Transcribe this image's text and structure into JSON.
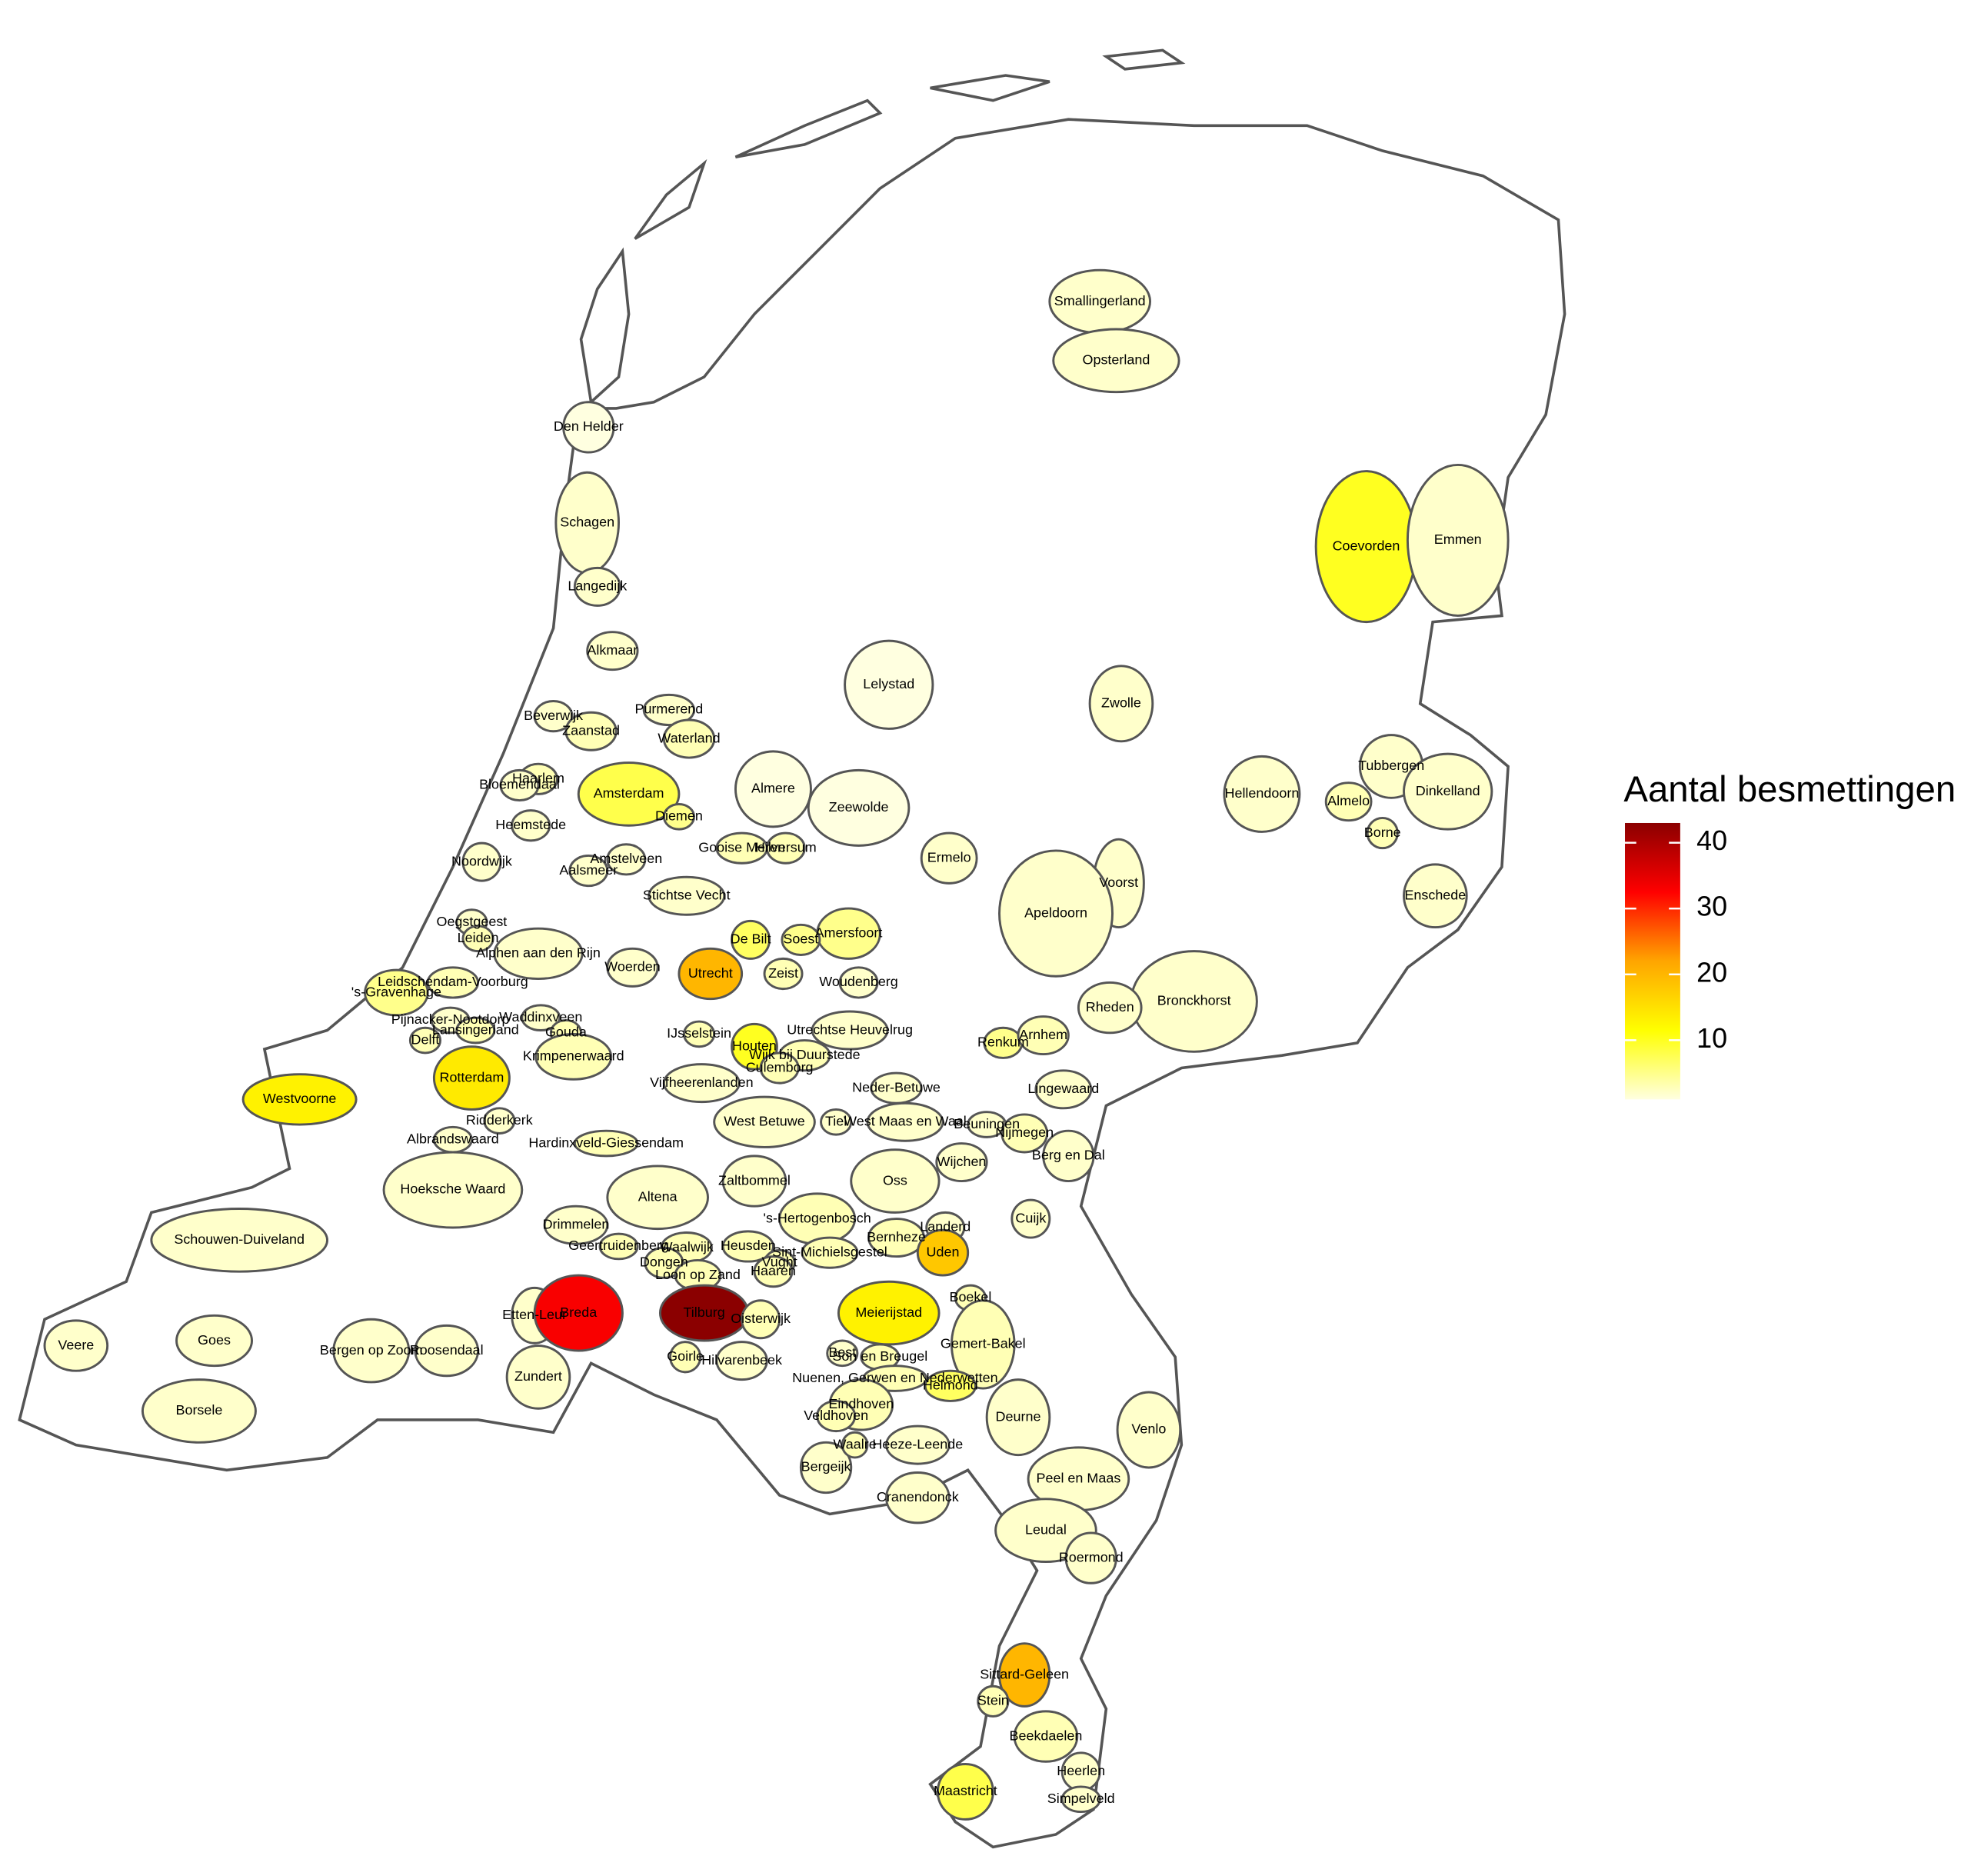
{
  "chart_data": {
    "type": "choropleth",
    "legend": {
      "title": "Aantal besmettingen",
      "ticks": [
        10,
        20,
        30,
        40
      ],
      "range": [
        1,
        43
      ],
      "colors": [
        "#FFFFE0",
        "#FFFF00",
        "#FFA500",
        "#FF0000",
        "#8B0000"
      ]
    },
    "regions": [
      "Smallingerland",
      "Opsterland",
      "Den Helder",
      "Schagen",
      "Coevorden",
      "Emmen",
      "Langedijk",
      "Alkmaar",
      "Lelystad",
      "Zwolle",
      "Beverwijk",
      "Purmerend",
      "Zaanstad",
      "Waterland",
      "Tubbergen",
      "Haarlem",
      "Bloemendaal",
      "Amsterdam",
      "Almere",
      "Zeewolde",
      "Hellendoorn",
      "Dinkelland",
      "Almelo",
      "Diemen",
      "Heemstede",
      "Borne",
      "Gooise Meren",
      "Hilversum",
      "Ermelo",
      "Amstelveen",
      "Noordwijk",
      "Aalsmeer",
      "Voorst",
      "Enschede",
      "Stichtse Vecht",
      "Apeldoorn",
      "Oegstgeest",
      "Leiden",
      "Amersfoort",
      "De Bilt",
      "Soest",
      "Alphen aan den Rijn",
      "Woerden",
      "Utrecht",
      "Zeist",
      "Leidschendam-Voorburg",
      "Woudenberg",
      "'s-Gravenhage",
      "Bronckhorst",
      "Rheden",
      "Waddinxveen",
      "Pijnacker-Nootdorp",
      "Houten",
      "Utrechtse Heuvelrug",
      "Renkum",
      "Arnhem",
      "Lansingerland",
      "Gouda",
      "IJsselstein",
      "Delft",
      "Wijk bij Duurstede",
      "Krimpenerwaard",
      "Culemborg",
      "Rotterdam",
      "Vijfheerenlanden",
      "Neder-Betuwe",
      "Lingewaard",
      "Westvoorne",
      "Ridderkerk",
      "West Betuwe",
      "Tiel",
      "West Maas en Waal",
      "Beuningen",
      "Nijmegen",
      "Albrandswaard",
      "Hardinxveld-Giessendam",
      "Berg en Dal",
      "Wijchen",
      "Hoeksche Waard",
      "Zaltbommel",
      "Oss",
      "Altena",
      "Cuijk",
      "Schouwen-Duiveland",
      "Drimmelen",
      "'s-Hertogenbosch",
      "Landerd",
      "Geertruidenberg",
      "Heusden",
      "Waalwijk",
      "Bernheze",
      "Uden",
      "Sint-Michielsgestel",
      "Vught",
      "Dongen",
      "Loon op Zand",
      "Haaren",
      "Boekel",
      "Etten-Leur",
      "Breda",
      "Tilburg",
      "Oisterwijk",
      "Meierijstad",
      "Veere",
      "Goes",
      "Gemert-Bakel",
      "Bergen op Zoom",
      "Roosendaal",
      "Goirle",
      "Best",
      "Son en Breugel",
      "Hilvarenbeek",
      "Nuenen, Gerwen en Nederwetten",
      "Zundert",
      "Helmond",
      "Eindhoven",
      "Veldhoven",
      "Deurne",
      "Borsele",
      "Venlo",
      "Bergeijk",
      "Waalre",
      "Heeze-Leende",
      "Cranendonck",
      "Peel en Maas",
      "Leudal",
      "Roermond",
      "Sittard-Geleen",
      "Stein",
      "Beekdaelen",
      "Heerlen",
      "Maastricht",
      "Simpelveld"
    ],
    "values": [
      2,
      2,
      1,
      2,
      10,
      2,
      2,
      2,
      1,
      2,
      2,
      2,
      3,
      3,
      2,
      3,
      2,
      8,
      1,
      1,
      2,
      2,
      3,
      5,
      2,
      3,
      3,
      3,
      2,
      2,
      2,
      2,
      2,
      2,
      2,
      2,
      2,
      3,
      5,
      7,
      5,
      2,
      2,
      20,
      3,
      3,
      2,
      5,
      2,
      2,
      2,
      2,
      10,
      2,
      5,
      3,
      3,
      3,
      3,
      3,
      3,
      3,
      3,
      14,
      2,
      2,
      2,
      13,
      2,
      2,
      2,
      2,
      2,
      3,
      2,
      3,
      2,
      2,
      2,
      2,
      2,
      2,
      2,
      2,
      2,
      3,
      2,
      3,
      3,
      3,
      3,
      18,
      3,
      3,
      3,
      3,
      3,
      3,
      2,
      33,
      43,
      3,
      13,
      2,
      2,
      3,
      2,
      2,
      3,
      2,
      3,
      2,
      3,
      2,
      7,
      3,
      3,
      2,
      2,
      2,
      2,
      3,
      2,
      2,
      2,
      2,
      2,
      20,
      3,
      3,
      2,
      8,
      2
    ]
  }
}
